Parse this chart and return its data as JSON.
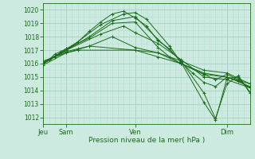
{
  "title": "",
  "xlabel": "Pression niveau de la mer( hPa )",
  "ylabel": "",
  "bg_color": "#cdeae0",
  "grid_color_major": "#aad4c4",
  "grid_color_minor": "#b8ddd0",
  "line_color": "#1a6b1a",
  "marker_color": "#1a6b1a",
  "ylim": [
    1011.5,
    1020.5
  ],
  "yticks": [
    1012,
    1013,
    1014,
    1015,
    1016,
    1017,
    1018,
    1019,
    1020
  ],
  "xtick_labels": [
    "Jeu",
    "Sam",
    "Ven",
    "Dim"
  ],
  "xtick_positions": [
    0,
    24,
    96,
    192
  ],
  "total_hours": 216,
  "lines": [
    [
      0,
      1016.0,
      6,
      1016.3,
      12,
      1016.7,
      18,
      1016.9,
      24,
      1017.1,
      36,
      1017.6,
      48,
      1018.4,
      60,
      1019.1,
      72,
      1019.7,
      84,
      1019.9,
      96,
      1019.4,
      108,
      1018.8,
      120,
      1017.7,
      132,
      1017.1,
      144,
      1016.1,
      156,
      1015.3,
      168,
      1014.6,
      180,
      1014.3,
      192,
      1015.0,
      204,
      1014.7,
      216,
      1014.2
    ],
    [
      0,
      1016.1,
      24,
      1017.0,
      48,
      1018.0,
      72,
      1019.2,
      96,
      1019.5,
      120,
      1017.8,
      144,
      1016.2,
      168,
      1013.8,
      180,
      1011.9,
      192,
      1014.5,
      204,
      1015.1,
      216,
      1013.8
    ],
    [
      0,
      1016.0,
      24,
      1017.0,
      60,
      1018.9,
      84,
      1019.7,
      96,
      1019.8,
      108,
      1019.3,
      132,
      1017.3,
      144,
      1016.1,
      168,
      1013.1,
      180,
      1011.8,
      192,
      1014.9,
      204,
      1015.0,
      216,
      1013.9
    ],
    [
      0,
      1016.0,
      24,
      1017.1,
      48,
      1017.9,
      72,
      1019.0,
      96,
      1019.1,
      120,
      1017.2,
      132,
      1016.5,
      144,
      1016.0,
      168,
      1015.2,
      180,
      1014.8,
      192,
      1015.2,
      204,
      1014.8,
      216,
      1014.2
    ],
    [
      0,
      1016.2,
      24,
      1016.8,
      36,
      1017.0,
      96,
      1017.0,
      120,
      1016.8,
      144,
      1016.2,
      168,
      1015.5,
      192,
      1015.3,
      216,
      1014.5
    ],
    [
      0,
      1016.1,
      24,
      1017.0,
      60,
      1018.2,
      84,
      1018.8,
      96,
      1018.3,
      120,
      1017.5,
      144,
      1016.3,
      168,
      1015.0,
      192,
      1014.8,
      216,
      1014.2
    ],
    [
      0,
      1015.9,
      24,
      1016.8,
      48,
      1017.3,
      72,
      1018.0,
      96,
      1017.2,
      120,
      1016.8,
      144,
      1016.0,
      168,
      1015.3,
      192,
      1015.0,
      216,
      1014.3
    ],
    [
      0,
      1016.0,
      12,
      1016.5,
      24,
      1016.9,
      36,
      1017.1,
      48,
      1017.3,
      96,
      1017.0,
      120,
      1016.5,
      144,
      1016.0,
      168,
      1015.2,
      192,
      1015.0,
      216,
      1014.5
    ]
  ]
}
